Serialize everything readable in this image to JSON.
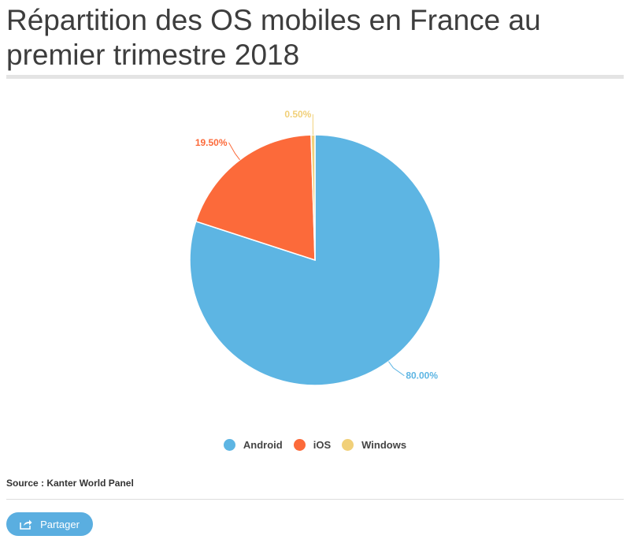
{
  "page": {
    "title": "Répartition des OS mobiles en France au premier trimestre 2018"
  },
  "chart_data": {
    "type": "pie",
    "title": "",
    "categories": [
      "Android",
      "iOS",
      "Windows"
    ],
    "values": [
      80.0,
      19.5,
      0.5
    ],
    "data_labels": [
      "80.00%",
      "19.50%",
      "0.50%"
    ],
    "colors": [
      "#5db5e3",
      "#fc6a3a",
      "#f1d079"
    ],
    "legend_position": "bottom"
  },
  "legend": {
    "items": [
      {
        "label": "Android",
        "color": "#5db5e3"
      },
      {
        "label": "iOS",
        "color": "#fc6a3a"
      },
      {
        "label": "Windows",
        "color": "#f1d079"
      }
    ]
  },
  "source": {
    "text": "Source : Kanter World Panel"
  },
  "share": {
    "label": "Partager",
    "icon": "share-icon"
  }
}
